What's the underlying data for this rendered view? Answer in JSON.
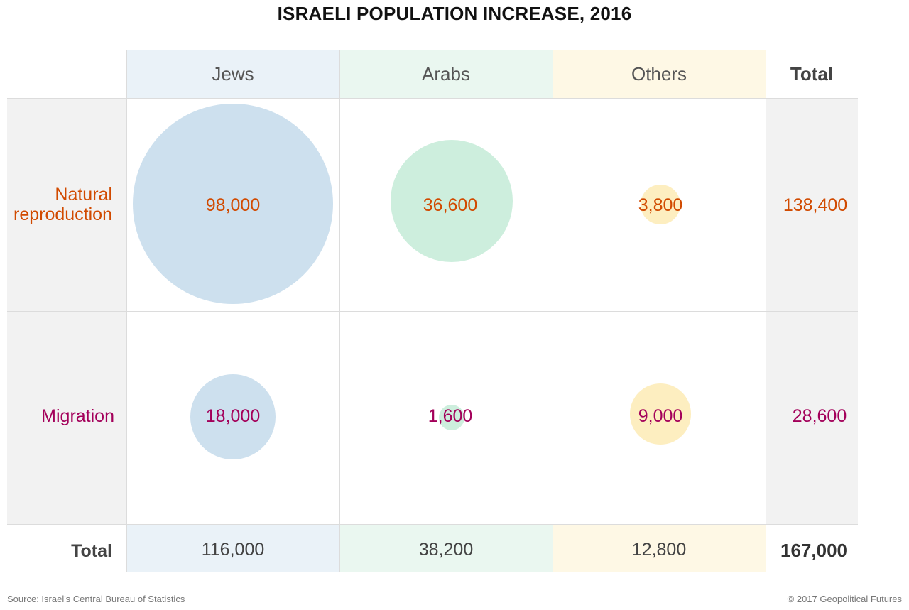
{
  "title": "ISRAELI POPULATION INCREASE, 2016",
  "columns": [
    "Jews",
    "Arabs",
    "Others",
    "Total"
  ],
  "rows": [
    {
      "label_lines": [
        "Natural",
        "reproduction"
      ],
      "color": "#d14a00"
    },
    {
      "label_lines": [
        "Migration"
      ],
      "color": "#a3005a"
    }
  ],
  "total_row_label": "Total",
  "colors": {
    "jews_bubble": "#cde0ee",
    "arabs_bubble": "#cdeedd",
    "others_bubble": "#fdeec0",
    "jews_band": "#eaf2f8",
    "arabs_band": "#eaf7f0",
    "others_band": "#fef8e5",
    "gray_band": "#f2f2f2"
  },
  "footer": {
    "source": "Source: Israel's Central Bureau of Statistics",
    "copyright": "© 2017 Geopolitical Futures"
  },
  "chart_data": {
    "type": "table",
    "title": "ISRAELI POPULATION INCREASE, 2016",
    "categories": [
      "Jews",
      "Arabs",
      "Others"
    ],
    "series": [
      {
        "name": "Natural reproduction",
        "values": [
          98000,
          36600,
          3800
        ],
        "display": [
          "98,000",
          "36,600",
          "3,800"
        ],
        "total": 138400,
        "total_display": "138,400"
      },
      {
        "name": "Migration",
        "values": [
          18000,
          1600,
          9000
        ],
        "display": [
          "18,000",
          "1,600",
          "9,000"
        ],
        "total": 28600,
        "total_display": "28,600"
      }
    ],
    "column_totals": [
      116000,
      38200,
      12800
    ],
    "column_totals_display": [
      "116,000",
      "38,200",
      "12,800"
    ],
    "grand_total": 167000,
    "grand_total_display": "167,000",
    "encoding": "bubble area proportional to value"
  }
}
